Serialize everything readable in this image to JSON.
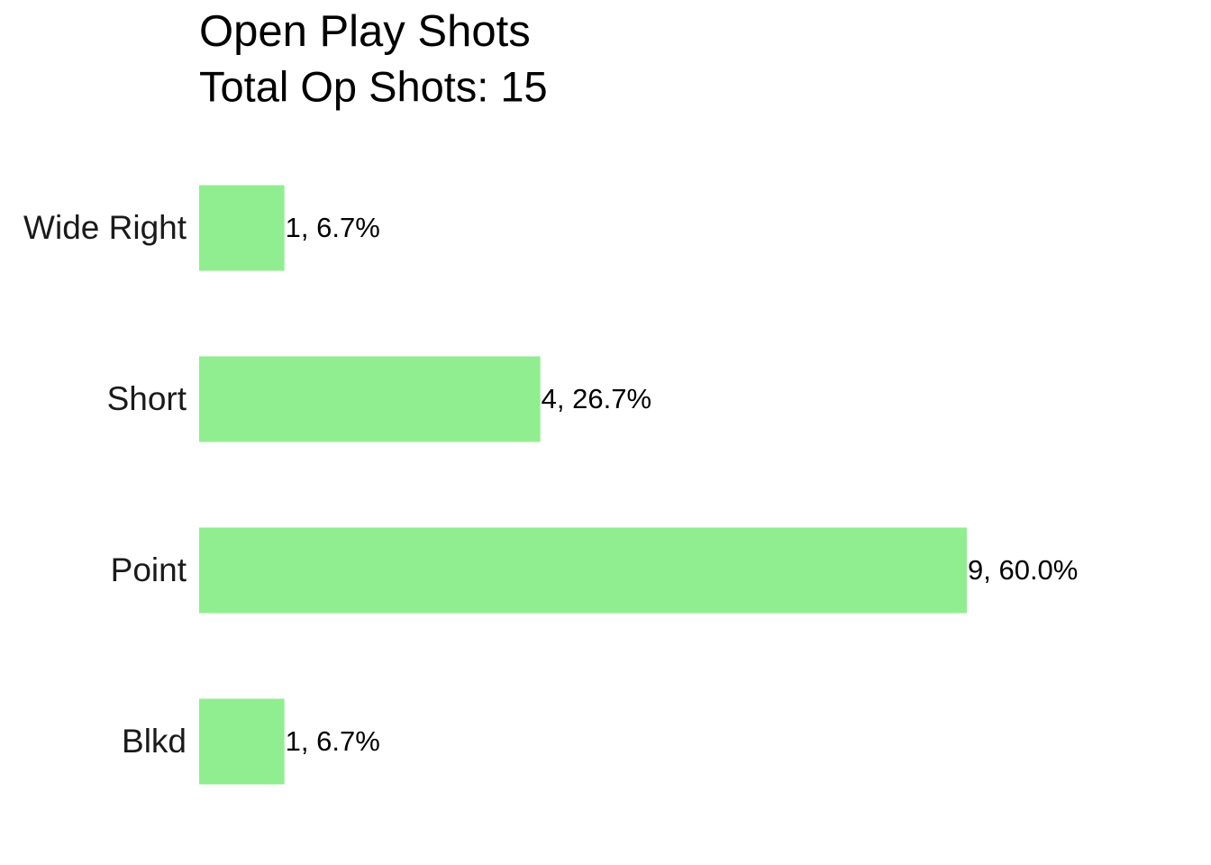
{
  "chart_data": {
    "type": "bar",
    "orientation": "horizontal",
    "title": "Open Play Shots",
    "subtitle": "Total Op Shots: 15",
    "categories": [
      "Wide Right",
      "Short",
      "Point",
      "Blkd"
    ],
    "values": [
      1,
      4,
      9,
      1
    ],
    "value_labels": [
      "1, 6.7%",
      "4, 26.7%",
      "9, 60.0%",
      "1, 6.7%"
    ],
    "color": "#90ee90"
  }
}
